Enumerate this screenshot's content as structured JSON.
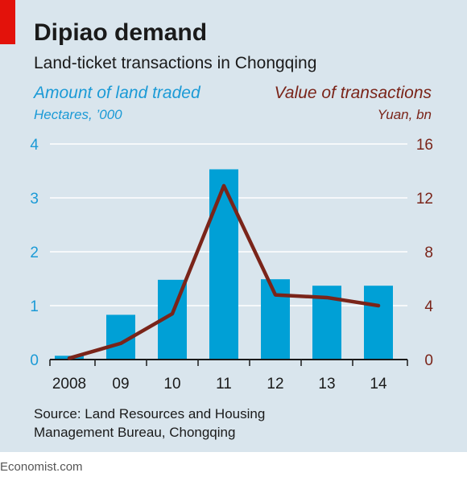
{
  "header": {
    "title": "Dipiao demand",
    "subtitle": "Land-ticket transactions in Chongqing"
  },
  "colors": {
    "background": "#d9e5ed",
    "bar": "#00a0d6",
    "line": "#7a2419",
    "left_axis_text": "#1b9ad6",
    "right_axis_text": "#7a2419",
    "brand_red": "#e3120b"
  },
  "chart_data": {
    "type": "bar",
    "title": "Dipiao demand",
    "subtitle": "Land-ticket transactions in Chongqing",
    "categories": [
      "2008",
      "09",
      "10",
      "11",
      "12",
      "13",
      "14"
    ],
    "left_axis": {
      "label": "Amount of land traded",
      "unit": "Hectares, ’000",
      "ylim": [
        0,
        4
      ],
      "ticks": [
        "0",
        "1",
        "2",
        "3",
        "4"
      ]
    },
    "right_axis": {
      "label": "Value of transactions",
      "unit": "Yuan, bn",
      "ylim": [
        0,
        16
      ],
      "ticks": [
        "0",
        "4",
        "8",
        "12",
        "16"
      ]
    },
    "series": [
      {
        "name": "Amount of land traded",
        "type": "bar",
        "axis": "left",
        "values": [
          0.07,
          0.83,
          1.48,
          3.53,
          1.49,
          1.37,
          1.37
        ]
      },
      {
        "name": "Value of transactions",
        "type": "line",
        "axis": "right",
        "values": [
          0.1,
          1.2,
          3.4,
          12.9,
          4.8,
          4.6,
          4.0
        ]
      }
    ],
    "grid": true
  },
  "source": {
    "line1": "Source: Land Resources and Housing",
    "line2": "Management Bureau, Chongqing"
  },
  "footer": "Economist.com"
}
